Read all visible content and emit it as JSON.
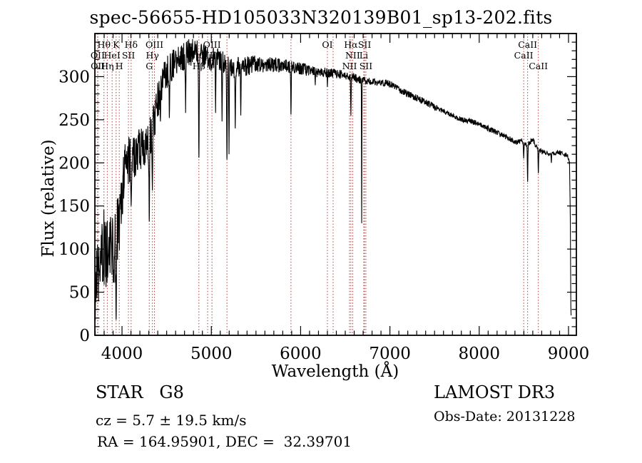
{
  "title": "spec-56655-HD105033N320139B01_sp13-202.fits",
  "footer": {
    "class_label": "STAR   G8",
    "cz_label": "cz = 5.7 ± 19.5 km/s",
    "radec_label": "RA = 164.95901, DEC =  32.39701",
    "survey_label": "LAMOST DR3",
    "obsdate_label": "Obs-Date: 20131228"
  },
  "colors": {
    "spectrum": "#000000",
    "line_marker": "#a84040",
    "frame": "#000000",
    "background": "#ffffff"
  },
  "chart_data": {
    "type": "line",
    "title": "spec-56655-HD105033N320139B01_sp13-202.fits",
    "xlabel": "Wavelength (Å)",
    "ylabel": "Flux (relative)",
    "xlim": [
      3696,
      9088
    ],
    "ylim": [
      0,
      350
    ],
    "x_ticks": [
      4000,
      5000,
      6000,
      7000,
      8000,
      9000
    ],
    "y_ticks": [
      0,
      50,
      100,
      150,
      200,
      250,
      300
    ],
    "x_minor_step": 100,
    "y_minor_step": 10,
    "grid": false,
    "legend": "none",
    "sample_step": 3,
    "series": [
      {
        "name": "spectrum",
        "anchors": [
          [
            3692,
            60,
            50
          ],
          [
            3720,
            80,
            50
          ],
          [
            3760,
            95,
            48
          ],
          [
            3800,
            100,
            46
          ],
          [
            3840,
            92,
            46
          ],
          [
            3880,
            100,
            44
          ],
          [
            3920,
            105,
            44
          ],
          [
            3960,
            120,
            42
          ],
          [
            4000,
            168,
            34
          ],
          [
            4040,
            195,
            30
          ],
          [
            4080,
            205,
            28
          ],
          [
            4120,
            208,
            28
          ],
          [
            4160,
            212,
            26
          ],
          [
            4220,
            218,
            24
          ],
          [
            4280,
            218,
            24
          ],
          [
            4340,
            238,
            24
          ],
          [
            4400,
            272,
            22
          ],
          [
            4460,
            298,
            20
          ],
          [
            4520,
            308,
            19
          ],
          [
            4580,
            316,
            18
          ],
          [
            4640,
            320,
            17
          ],
          [
            4700,
            324,
            17
          ],
          [
            4760,
            328,
            16
          ],
          [
            4820,
            330,
            15
          ],
          [
            4880,
            326,
            14
          ],
          [
            4940,
            322,
            14
          ],
          [
            5000,
            320,
            14
          ],
          [
            5060,
            320,
            13
          ],
          [
            5120,
            318,
            13
          ],
          [
            5180,
            312,
            12
          ],
          [
            5240,
            310,
            12
          ],
          [
            5300,
            311,
            12
          ],
          [
            5360,
            311,
            11
          ],
          [
            5420,
            313,
            11
          ],
          [
            5480,
            316,
            10
          ],
          [
            5540,
            315,
            10
          ],
          [
            5620,
            313,
            9
          ],
          [
            5700,
            314,
            9
          ],
          [
            5780,
            313,
            8
          ],
          [
            5860,
            312,
            8
          ],
          [
            5940,
            310,
            7
          ],
          [
            6020,
            309,
            7
          ],
          [
            6100,
            307,
            7
          ],
          [
            6180,
            305,
            6
          ],
          [
            6260,
            305,
            6
          ],
          [
            6340,
            304,
            6
          ],
          [
            6420,
            303,
            5
          ],
          [
            6500,
            302,
            5
          ],
          [
            6580,
            299,
            5
          ],
          [
            6660,
            297,
            5
          ],
          [
            6740,
            295,
            4
          ],
          [
            6820,
            294,
            4
          ],
          [
            6900,
            292,
            4
          ],
          [
            6980,
            293,
            4
          ],
          [
            7060,
            288,
            4
          ],
          [
            7140,
            283,
            4
          ],
          [
            7220,
            279,
            4
          ],
          [
            7300,
            275,
            4
          ],
          [
            7380,
            271,
            4
          ],
          [
            7460,
            267,
            4
          ],
          [
            7540,
            263,
            3
          ],
          [
            7620,
            259,
            3
          ],
          [
            7700,
            255,
            3
          ],
          [
            7780,
            251,
            3
          ],
          [
            7860,
            249,
            3
          ],
          [
            7940,
            247,
            3
          ],
          [
            8020,
            244,
            3
          ],
          [
            8100,
            240,
            3
          ],
          [
            8180,
            236,
            3
          ],
          [
            8260,
            232,
            3
          ],
          [
            8340,
            228,
            3
          ],
          [
            8420,
            224,
            3
          ],
          [
            8480,
            226,
            3
          ],
          [
            8520,
            221,
            3
          ],
          [
            8560,
            222,
            3
          ],
          [
            8600,
            228,
            3
          ],
          [
            8640,
            218,
            3
          ],
          [
            8680,
            214,
            3
          ],
          [
            8720,
            212,
            3
          ],
          [
            8760,
            211,
            3
          ],
          [
            8800,
            209,
            3
          ],
          [
            8840,
            211,
            3
          ],
          [
            8880,
            212,
            3
          ],
          [
            8920,
            211,
            3
          ],
          [
            8960,
            210,
            3
          ],
          [
            9000,
            207,
            4
          ],
          [
            9012,
            200,
            6
          ],
          [
            9020,
            150,
            20
          ],
          [
            9026,
            40,
            15
          ],
          [
            9030,
            12,
            6
          ]
        ]
      }
    ],
    "absorption_features": [
      [
        3934,
        18,
        6
      ],
      [
        4102,
        150,
        5
      ],
      [
        4305,
        132,
        5
      ],
      [
        4340,
        168,
        5
      ],
      [
        4430,
        248,
        4
      ],
      [
        4530,
        252,
        4
      ],
      [
        4712,
        258,
        4
      ],
      [
        4861,
        206,
        5
      ],
      [
        5048,
        258,
        4
      ],
      [
        5120,
        248,
        4
      ],
      [
        5175,
        204,
        5
      ],
      [
        5198,
        210,
        4
      ],
      [
        5268,
        240,
        4
      ],
      [
        5330,
        255,
        4
      ],
      [
        5892,
        256,
        4
      ],
      [
        6164,
        290,
        3
      ],
      [
        6300,
        288,
        3
      ],
      [
        6563,
        255,
        4
      ],
      [
        6684,
        130,
        2.5
      ],
      [
        8498,
        205,
        4
      ],
      [
        8542,
        178,
        4
      ],
      [
        8662,
        188,
        4
      ],
      [
        8808,
        200,
        3
      ]
    ],
    "spectral_lines": [
      {
        "label": "OII",
        "wavelength": 3727,
        "row": 2
      },
      {
        "label": "OII",
        "wavelength": 3729,
        "row": 3
      },
      {
        "label": "Hθ",
        "wavelength": 3798,
        "row": 1
      },
      {
        "label": "Hη",
        "wavelength": 3835,
        "row": 3
      },
      {
        "label": "HeI",
        "wavelength": 3889,
        "row": 2
      },
      {
        "label": "K",
        "wavelength": 3934,
        "row": 1
      },
      {
        "label": "H",
        "wavelength": 3969,
        "row": 3
      },
      {
        "label": "SII",
        "wavelength": 4072,
        "row": 2
      },
      {
        "label": "Hδ",
        "wavelength": 4102,
        "row": 1
      },
      {
        "label": "G",
        "wavelength": 4305,
        "row": 3
      },
      {
        "label": "Hγ",
        "wavelength": 4340,
        "row": 2
      },
      {
        "label": "OIII",
        "wavelength": 4363,
        "row": 1
      },
      {
        "label": "Hβ",
        "wavelength": 4861,
        "row": 3
      },
      {
        "label": "OIII",
        "wavelength": 4959,
        "row": 2
      },
      {
        "label": "OIII",
        "wavelength": 5007,
        "row": 1
      },
      {
        "label": "",
        "wavelength": 5175,
        "row": 0
      },
      {
        "label": "",
        "wavelength": 5892,
        "row": 0
      },
      {
        "label": "OI",
        "wavelength": 6300,
        "row": 1
      },
      {
        "label": "",
        "wavelength": 6364,
        "row": 0
      },
      {
        "label": "NII",
        "wavelength": 6548,
        "row": 3
      },
      {
        "label": "Hα",
        "wavelength": 6563,
        "row": 1
      },
      {
        "label": "NII",
        "wavelength": 6583,
        "row": 2
      },
      {
        "label": "Li",
        "wavelength": 6707,
        "row": 2
      },
      {
        "label": "SII",
        "wavelength": 6716,
        "row": 1
      },
      {
        "label": "SII",
        "wavelength": 6731,
        "row": 3
      },
      {
        "label": "CaII",
        "wavelength": 8498,
        "row": 2
      },
      {
        "label": "CaII",
        "wavelength": 8542,
        "row": 1
      },
      {
        "label": "CaII",
        "wavelength": 8662,
        "row": 3
      }
    ]
  }
}
